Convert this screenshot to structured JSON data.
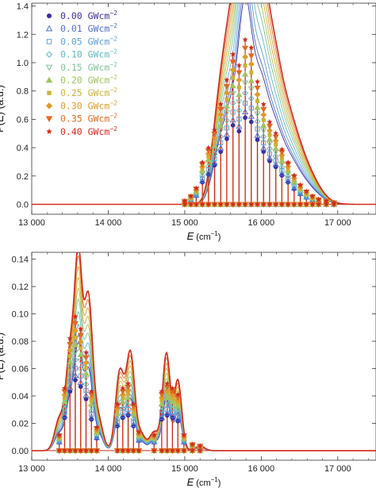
{
  "chart_data": [
    {
      "type": "line",
      "panel": "top",
      "xlabel_main": "E",
      "xlabel_unit": " (cm",
      "xlabel_exp": "−1",
      "xlabel_close": ")",
      "ylabel": "P(E) (a.u.)",
      "xlim": [
        13000,
        17500
      ],
      "ylim": [
        -0.07,
        1.42
      ],
      "x_ticks": [
        13000,
        14000,
        15000,
        16000,
        17000
      ],
      "x_tick_labels": [
        "13 000",
        "14 000",
        "15 000",
        "16 000",
        "17 000"
      ],
      "y_ticks": [
        0.0,
        0.2,
        0.4,
        0.6,
        0.8,
        1.0,
        1.2,
        1.4
      ],
      "y_tick_labels": [
        "0.0",
        "0.2",
        "0.4",
        "0.6",
        "0.8",
        "1.0",
        "1.2",
        "1.4"
      ],
      "legend_unit": "GWcm",
      "legend_exp": "−2",
      "legend_placement": "top-left",
      "series": [
        {
          "name": "0.00",
          "color": "#3a2fa0",
          "marker": "circle",
          "scale": 0.6
        },
        {
          "name": "0.01",
          "color": "#4f6fcf",
          "marker": "triangle-open",
          "scale": 0.64
        },
        {
          "name": "0.05",
          "color": "#5f9fd6",
          "marker": "square-open",
          "scale": 0.7
        },
        {
          "name": "0.10",
          "color": "#63b7c2",
          "marker": "diamond-open",
          "scale": 0.77
        },
        {
          "name": "0.15",
          "color": "#7fc29a",
          "marker": "triangle-down-open",
          "scale": 0.84
        },
        {
          "name": "0.20",
          "color": "#a3c260",
          "marker": "triangle",
          "scale": 0.9
        },
        {
          "name": "0.25",
          "color": "#c9b33a",
          "marker": "square",
          "scale": 0.96
        },
        {
          "name": "0.30",
          "color": "#e09a2c",
          "marker": "diamond",
          "scale": 1.02
        },
        {
          "name": "0.35",
          "color": "#e06a22",
          "marker": "triangle-down",
          "scale": 1.08
        },
        {
          "name": "0.40",
          "color": "#d12a1c",
          "marker": "star",
          "scale": 1.14
        }
      ],
      "envelope_peaks": [
        {
          "x": 15420,
          "y": 0.38,
          "w": 90
        },
        {
          "x": 15560,
          "y": 0.75,
          "w": 95
        },
        {
          "x": 15700,
          "y": 0.92,
          "w": 90
        },
        {
          "x": 15780,
          "y": 1.16,
          "w": 70
        },
        {
          "x": 15860,
          "y": 0.95,
          "w": 75
        },
        {
          "x": 15980,
          "y": 0.96,
          "w": 85
        },
        {
          "x": 16120,
          "y": 0.7,
          "w": 110
        },
        {
          "x": 16300,
          "y": 0.48,
          "w": 150
        },
        {
          "x": 16550,
          "y": 0.22,
          "w": 180
        }
      ],
      "sticks": [
        {
          "x": 15000,
          "y": 0.02
        },
        {
          "x": 15080,
          "y": 0.05
        },
        {
          "x": 15150,
          "y": 0.1
        },
        {
          "x": 15230,
          "y": 0.26
        },
        {
          "x": 15310,
          "y": 0.35
        },
        {
          "x": 15390,
          "y": 0.46
        },
        {
          "x": 15470,
          "y": 0.62
        },
        {
          "x": 15550,
          "y": 0.77
        },
        {
          "x": 15630,
          "y": 0.93
        },
        {
          "x": 15710,
          "y": 0.86
        },
        {
          "x": 15790,
          "y": 1.02
        },
        {
          "x": 15870,
          "y": 0.97
        },
        {
          "x": 15950,
          "y": 0.76
        },
        {
          "x": 16030,
          "y": 0.62
        },
        {
          "x": 16110,
          "y": 0.51
        },
        {
          "x": 16190,
          "y": 0.44
        },
        {
          "x": 16270,
          "y": 0.34
        },
        {
          "x": 16350,
          "y": 0.26
        },
        {
          "x": 16430,
          "y": 0.18
        },
        {
          "x": 16510,
          "y": 0.12
        },
        {
          "x": 16590,
          "y": 0.08
        },
        {
          "x": 16670,
          "y": 0.05
        },
        {
          "x": 16750,
          "y": 0.03
        },
        {
          "x": 16850,
          "y": 0.02
        },
        {
          "x": 16950,
          "y": 0.01
        }
      ]
    },
    {
      "type": "line",
      "panel": "bottom",
      "xlabel_main": "E",
      "xlabel_unit": " (cm",
      "xlabel_exp": "−1",
      "xlabel_close": ")",
      "ylabel": "P(E) (a.u.)",
      "xlim": [
        13000,
        17500
      ],
      "ylim": [
        -0.007,
        0.145
      ],
      "x_ticks": [
        13000,
        14000,
        15000,
        16000,
        17000
      ],
      "x_tick_labels": [
        "13 000",
        "14 000",
        "15 000",
        "16 000",
        "17 000"
      ],
      "y_ticks": [
        0.0,
        0.02,
        0.04,
        0.06,
        0.08,
        0.1,
        0.12,
        0.14
      ],
      "y_tick_labels": [
        "0.00",
        "0.02",
        "0.04",
        "0.06",
        "0.08",
        "0.10",
        "0.12",
        "0.14"
      ],
      "envelope_peaks": [
        {
          "x": 13360,
          "y": 0.02,
          "w": 60
        },
        {
          "x": 13500,
          "y": 0.06,
          "w": 55
        },
        {
          "x": 13610,
          "y": 0.118,
          "w": 50
        },
        {
          "x": 13740,
          "y": 0.096,
          "w": 55
        },
        {
          "x": 13870,
          "y": 0.02,
          "w": 60
        },
        {
          "x": 14150,
          "y": 0.05,
          "w": 55
        },
        {
          "x": 14290,
          "y": 0.062,
          "w": 55
        },
        {
          "x": 14430,
          "y": 0.01,
          "w": 55
        },
        {
          "x": 14600,
          "y": 0.012,
          "w": 60
        },
        {
          "x": 14760,
          "y": 0.062,
          "w": 50
        },
        {
          "x": 14910,
          "y": 0.045,
          "w": 50
        },
        {
          "x": 15200,
          "y": 0.003,
          "w": 60
        }
      ],
      "sticks": [
        {
          "x": 13360,
          "y": 0.01
        },
        {
          "x": 13430,
          "y": 0.04
        },
        {
          "x": 13500,
          "y": 0.072
        },
        {
          "x": 13570,
          "y": 0.086
        },
        {
          "x": 13640,
          "y": 0.078
        },
        {
          "x": 13710,
          "y": 0.063
        },
        {
          "x": 13780,
          "y": 0.038
        },
        {
          "x": 13850,
          "y": 0.015
        },
        {
          "x": 14120,
          "y": 0.03
        },
        {
          "x": 14190,
          "y": 0.04
        },
        {
          "x": 14260,
          "y": 0.043
        },
        {
          "x": 14330,
          "y": 0.03
        },
        {
          "x": 14400,
          "y": 0.012
        },
        {
          "x": 14600,
          "y": 0.01
        },
        {
          "x": 14700,
          "y": 0.038
        },
        {
          "x": 14770,
          "y": 0.043
        },
        {
          "x": 14840,
          "y": 0.04
        },
        {
          "x": 14910,
          "y": 0.036
        },
        {
          "x": 14990,
          "y": 0.01
        },
        {
          "x": 15100,
          "y": 0.004
        },
        {
          "x": 15200,
          "y": 0.003
        }
      ]
    }
  ]
}
